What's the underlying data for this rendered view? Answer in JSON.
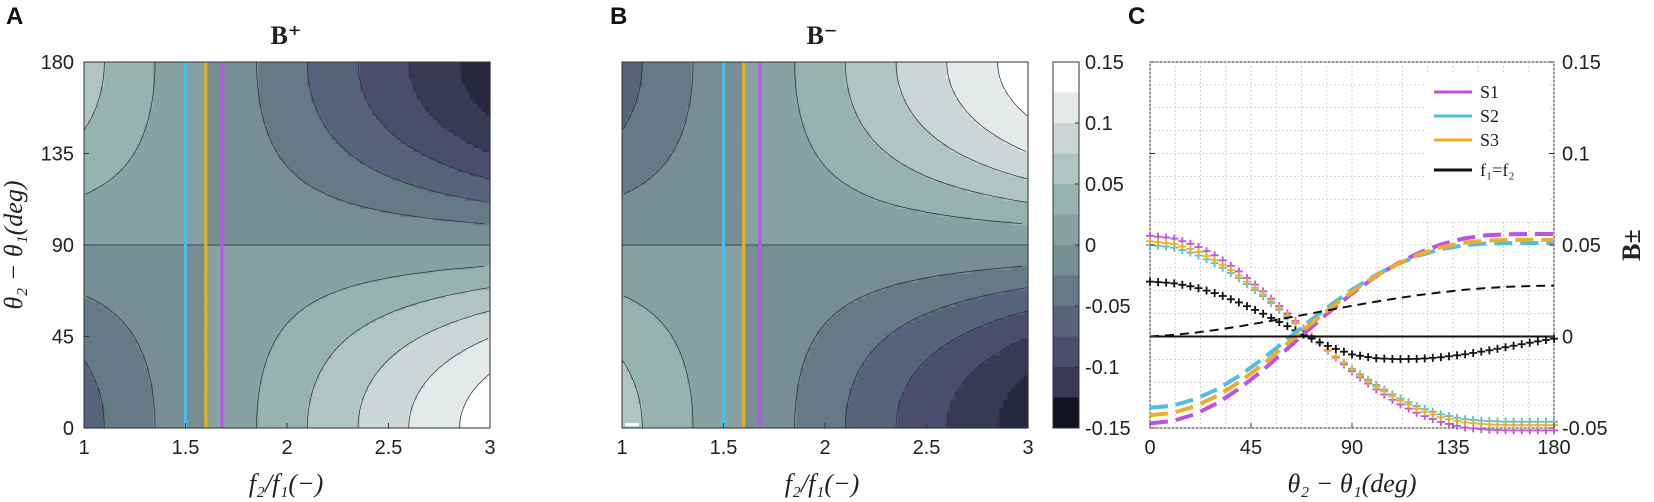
{
  "panels": {
    "a": {
      "letter": "A",
      "title": "B⁺"
    },
    "b": {
      "letter": "B",
      "title": "B⁻"
    },
    "c": {
      "letter": "C"
    }
  },
  "colorbar": {
    "ticks": [
      "0.15",
      "0.1",
      "0.05",
      "0",
      "-0.05",
      "-0.1",
      "-0.15"
    ],
    "levels": [
      0.15,
      0.125,
      0.1,
      0.075,
      0.05,
      0.025,
      0,
      -0.025,
      -0.05,
      -0.075,
      -0.1,
      -0.125,
      -0.15
    ],
    "colors": [
      "#ffffff",
      "#e4eaea",
      "#cad7d6",
      "#b0c5c3",
      "#97b3b0",
      "#87a2a2",
      "#778e94",
      "#657a86",
      "#56637a",
      "#4a4e6c",
      "#383a55",
      "#26273c",
      "#111320"
    ]
  },
  "colors": {
    "S1": "#c04ff0",
    "S2": "#4bbfea",
    "S3": "#f0ad1c",
    "equal": "#111111"
  },
  "chart_data": [
    {
      "type": "heatmap",
      "panel": "A",
      "title": "B⁺",
      "xlabel": "f₂/f₁(−)",
      "ylabel": "θ₂ − θ₁(deg)",
      "xlim": [
        1,
        3
      ],
      "ylim": [
        0,
        180
      ],
      "xticks": [
        "1",
        "1.5",
        "2",
        "2.5",
        "3"
      ],
      "yticks": [
        "0",
        "45",
        "90",
        "135",
        "180"
      ],
      "formula": "value = (f2/f1 - 1.6) * 0.1 * cos(theta)",
      "clim": [
        -0.15,
        0.15
      ],
      "vlines": [
        {
          "name": "S2",
          "x": 1.5
        },
        {
          "name": "S3",
          "x": 1.6
        },
        {
          "name": "S1",
          "x": 1.68
        }
      ]
    },
    {
      "type": "heatmap",
      "panel": "B",
      "title": "B⁻",
      "xlabel": "f₂/f₁(−)",
      "ylabel": "",
      "xlim": [
        1,
        3
      ],
      "ylim": [
        0,
        180
      ],
      "xticks": [
        "1",
        "1.5",
        "2",
        "2.5",
        "3"
      ],
      "formula": "value = -(f2/f1 - 1.6) * 0.1 * cos(theta)",
      "clim": [
        -0.15,
        0.15
      ],
      "vlines": [
        {
          "name": "S2",
          "x": 1.5
        },
        {
          "name": "S3",
          "x": 1.6
        },
        {
          "name": "S1",
          "x": 1.68
        }
      ]
    },
    {
      "type": "line",
      "panel": "C",
      "xlabel": "θ₂ − θ₁(deg)",
      "ylabel": "B±",
      "xlim": [
        0,
        180
      ],
      "ylim": [
        -0.05,
        0.15
      ],
      "xticks": [
        "0",
        "45",
        "90",
        "135",
        "180"
      ],
      "yticks": [
        "0.15",
        "0.1",
        "0.05",
        "0",
        "-0.05"
      ],
      "grid": true,
      "legend": {
        "position": "top-right",
        "entries": [
          "S1",
          "S2",
          "S3",
          "f₁=f₂"
        ]
      },
      "x": [
        0,
        10,
        20,
        30,
        40,
        50,
        60,
        70,
        80,
        90,
        100,
        110,
        120,
        130,
        140,
        150,
        160,
        170,
        180
      ],
      "series": [
        {
          "name": "S1",
          "style": "plus",
          "values": [
            0.055,
            0.0538,
            0.0499,
            0.0436,
            0.0352,
            0.0251,
            0.014,
            0.0025,
            -0.0086,
            -0.019,
            -0.0283,
            -0.0361,
            -0.0424,
            -0.0469,
            -0.0497,
            -0.0509,
            -0.0513,
            -0.0513,
            -0.0513
          ]
        },
        {
          "name": "S2",
          "style": "plus",
          "values": [
            0.05,
            0.0488,
            0.0452,
            0.0394,
            0.0316,
            0.0224,
            0.0122,
            0.0018,
            -0.0083,
            -0.0176,
            -0.0259,
            -0.033,
            -0.0387,
            -0.0427,
            -0.0452,
            -0.0462,
            -0.0466,
            -0.0466,
            -0.0466
          ]
        },
        {
          "name": "S3",
          "style": "plus",
          "values": [
            0.052,
            0.0508,
            0.0471,
            0.041,
            0.033,
            0.0235,
            0.0129,
            0.0022,
            -0.0083,
            -0.0181,
            -0.0268,
            -0.0341,
            -0.0401,
            -0.0443,
            -0.0469,
            -0.048,
            -0.0484,
            -0.0484,
            -0.0484
          ]
        },
        {
          "name": "f₁=f₂",
          "style": "plus",
          "values": [
            0.03,
            0.0292,
            0.027,
            0.0233,
            0.0184,
            0.0127,
            0.0064,
            0.0,
            -0.0056,
            -0.0098,
            -0.0118,
            -0.0124,
            -0.0122,
            -0.0113,
            -0.0098,
            -0.0078,
            -0.0055,
            -0.0032,
            -0.0012
          ]
        },
        {
          "name": "S1",
          "style": "dashed",
          "values": [
            -0.0475,
            -0.0462,
            -0.0425,
            -0.0364,
            -0.0283,
            -0.0187,
            -0.008,
            0.003,
            0.0136,
            0.0235,
            0.0323,
            0.0397,
            0.0458,
            0.0505,
            0.0536,
            0.0553,
            0.0559,
            0.056,
            0.056
          ]
        },
        {
          "name": "S2",
          "style": "dashed",
          "values": [
            -0.039,
            -0.0378,
            -0.0343,
            -0.0288,
            -0.0213,
            -0.0124,
            -0.0026,
            0.0074,
            0.0168,
            0.0255,
            0.0331,
            0.0394,
            0.0443,
            0.0478,
            0.0499,
            0.0508,
            0.0511,
            0.0511,
            0.0511
          ]
        },
        {
          "name": "S3",
          "style": "dashed",
          "values": [
            -0.043,
            -0.0418,
            -0.0382,
            -0.0324,
            -0.0247,
            -0.0155,
            -0.0052,
            0.0052,
            0.0152,
            0.0244,
            0.0326,
            0.0394,
            0.0449,
            0.0488,
            0.0513,
            0.0524,
            0.0528,
            0.0528,
            0.0528
          ]
        },
        {
          "name": "f₁=f₂",
          "style": "dashed",
          "values": [
            0.0,
            0.0008,
            0.0021,
            0.0037,
            0.0056,
            0.0077,
            0.0099,
            0.0122,
            0.0145,
            0.0168,
            0.0189,
            0.0209,
            0.0227,
            0.0242,
            0.0255,
            0.0265,
            0.0272,
            0.0276,
            0.0278
          ]
        },
        {
          "name": "f₁=f₂",
          "style": "solid",
          "values": [
            0,
            0,
            0,
            0,
            0,
            0,
            0,
            0,
            0,
            0,
            0,
            0,
            0,
            0,
            0,
            0,
            0,
            0,
            0
          ]
        }
      ]
    }
  ]
}
